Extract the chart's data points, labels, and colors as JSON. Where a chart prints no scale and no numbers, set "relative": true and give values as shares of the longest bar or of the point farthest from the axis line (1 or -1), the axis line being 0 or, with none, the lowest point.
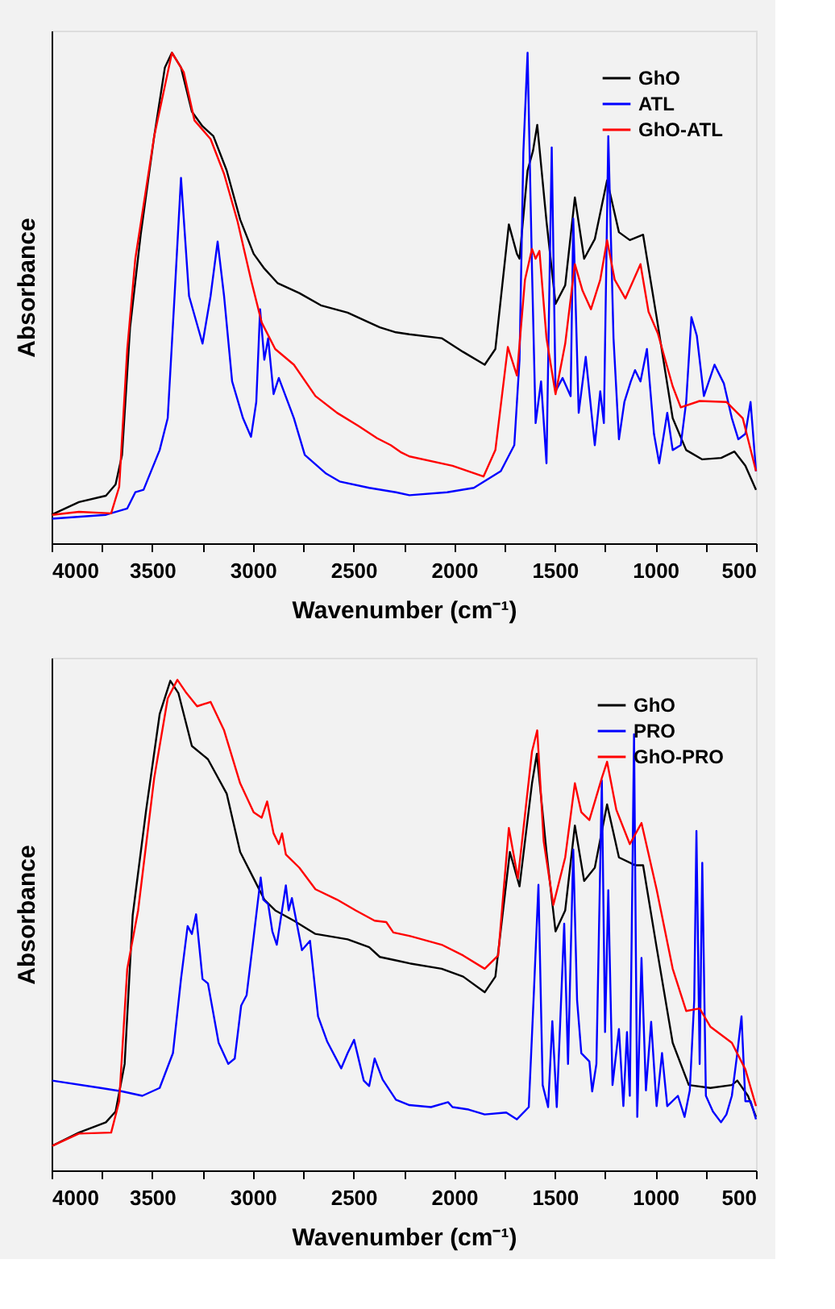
{
  "chart_data": [
    {
      "type": "line",
      "relative": true,
      "xlabel": "Wavenumber (cm⁻¹)",
      "ylabel": "Absorbance",
      "xlim": [
        4000,
        500
      ],
      "xticks": [
        4000,
        {
          "value": 3750,
          "label": null
        },
        3500,
        {
          "value": 3250,
          "label": null
        },
        3000,
        {
          "value": 2750,
          "label": null
        },
        2500,
        {
          "value": 2250,
          "label": null
        },
        2000,
        {
          "value": 1750,
          "label": null
        },
        1500,
        {
          "value": 1250,
          "label": null
        },
        1000,
        {
          "value": 750,
          "label": null
        },
        500
      ],
      "legend": "top right",
      "line_style": "solid",
      "marker": "none",
      "series": [
        {
          "name": "GhO",
          "color": "#000000",
          "x": [
            4000,
            3864,
            3730,
            3682,
            3650,
            3610,
            3557,
            3490,
            3437,
            3402,
            3357,
            3303,
            3250,
            3196,
            3130,
            3063,
            2996,
            2943,
            2876,
            2769,
            2662,
            2529,
            2422,
            2369,
            2289,
            2222,
            2062,
            1955,
            1848,
            1795,
            1728,
            1688,
            1675,
            1635,
            1608,
            1587,
            1541,
            1496,
            1448,
            1400,
            1354,
            1301,
            1240,
            1181,
            1127,
            1061,
            994,
            914,
            847,
            767,
            673,
            607,
            553,
            500
          ],
          "values": [
            0.058,
            0.084,
            0.097,
            0.12,
            0.18,
            0.44,
            0.63,
            0.83,
            0.97,
            1.0,
            0.97,
            0.88,
            0.85,
            0.83,
            0.76,
            0.66,
            0.59,
            0.56,
            0.53,
            0.51,
            0.485,
            0.47,
            0.45,
            0.44,
            0.43,
            0.426,
            0.418,
            0.39,
            0.364,
            0.396,
            0.65,
            0.59,
            0.58,
            0.76,
            0.8,
            0.853,
            0.656,
            0.488,
            0.526,
            0.705,
            0.58,
            0.62,
            0.74,
            0.634,
            0.618,
            0.629,
            0.461,
            0.255,
            0.19,
            0.171,
            0.174,
            0.187,
            0.158,
            0.109
          ]
        },
        {
          "name": "ATL",
          "color": "#0000ff",
          "x": [
            3997,
            3730,
            3624,
            3584,
            3543,
            3463,
            3423,
            3389,
            3357,
            3317,
            3250,
            3210,
            3175,
            3143,
            3103,
            3049,
            3009,
            2983,
            2964,
            2943,
            2924,
            2897,
            2871,
            2796,
            2742,
            2636,
            2569,
            2422,
            2289,
            2222,
            2035,
            1902,
            1768,
            1701,
            1675,
            1656,
            1635,
            1613,
            1595,
            1568,
            1541,
            1515,
            1496,
            1461,
            1421,
            1408,
            1381,
            1346,
            1301,
            1274,
            1256,
            1234,
            1208,
            1181,
            1154,
            1122,
            1101,
            1074,
            1042,
            1007,
            981,
            941,
            914,
            874,
            847,
            821,
            794,
            759,
            706,
            660,
            620,
            588,
            553,
            527,
            500
          ],
          "values": [
            0.05,
            0.058,
            0.071,
            0.104,
            0.109,
            0.19,
            0.255,
            0.504,
            0.745,
            0.504,
            0.407,
            0.504,
            0.615,
            0.504,
            0.33,
            0.255,
            0.217,
            0.288,
            0.477,
            0.374,
            0.418,
            0.304,
            0.337,
            0.255,
            0.18,
            0.142,
            0.126,
            0.113,
            0.104,
            0.098,
            0.104,
            0.113,
            0.147,
            0.2,
            0.374,
            0.797,
            1.0,
            0.558,
            0.245,
            0.33,
            0.163,
            0.807,
            0.31,
            0.337,
            0.3,
            0.662,
            0.266,
            0.38,
            0.2,
            0.31,
            0.245,
            0.83,
            0.418,
            0.212,
            0.288,
            0.33,
            0.353,
            0.33,
            0.396,
            0.223,
            0.163,
            0.266,
            0.19,
            0.2,
            0.288,
            0.461,
            0.423,
            0.3,
            0.364,
            0.326,
            0.255,
            0.212,
            0.223,
            0.288,
            0.147
          ]
        },
        {
          "name": "GhO-ATL",
          "color": "#ff0000",
          "x": [
            3997,
            3864,
            3704,
            3664,
            3624,
            3584,
            3490,
            3402,
            3343,
            3290,
            3210,
            3143,
            3076,
            3009,
            2956,
            2889,
            2796,
            2689,
            2582,
            2475,
            2382,
            2315,
            2262,
            2222,
            2008,
            1854,
            1795,
            1733,
            1688,
            1648,
            1613,
            1595,
            1576,
            1541,
            1496,
            1448,
            1400,
            1362,
            1320,
            1274,
            1240,
            1202,
            1149,
            1074,
            1034,
            988,
            914,
            874,
            780,
            647,
            566,
            500
          ],
          "values": [
            0.058,
            0.064,
            0.061,
            0.115,
            0.396,
            0.58,
            0.83,
            1.0,
            0.96,
            0.862,
            0.824,
            0.753,
            0.656,
            0.537,
            0.45,
            0.396,
            0.364,
            0.3,
            0.266,
            0.239,
            0.214,
            0.2,
            0.185,
            0.177,
            0.158,
            0.136,
            0.19,
            0.4,
            0.342,
            0.537,
            0.6,
            0.58,
            0.596,
            0.418,
            0.304,
            0.407,
            0.569,
            0.515,
            0.477,
            0.537,
            0.618,
            0.537,
            0.499,
            0.569,
            0.472,
            0.428,
            0.32,
            0.277,
            0.29,
            0.288,
            0.255,
            0.147
          ]
        }
      ]
    },
    {
      "type": "line",
      "relative": true,
      "xlabel": "Wavenumber (cm⁻¹)",
      "ylabel": "Absorbance",
      "xlim": [
        4000,
        500
      ],
      "xticks": [
        4000,
        {
          "value": 3750,
          "label": null
        },
        3500,
        {
          "value": 3250,
          "label": null
        },
        3000,
        {
          "value": 2750,
          "label": null
        },
        2500,
        {
          "value": 2250,
          "label": null
        },
        2000,
        {
          "value": 1750,
          "label": null
        },
        1500,
        {
          "value": 1250,
          "label": null
        },
        1000,
        {
          "value": 750,
          "label": null
        },
        500
      ],
      "legend": "top right",
      "line_style": "solid",
      "marker": "none",
      "series": [
        {
          "name": "GhO",
          "color": "#000000",
          "x": [
            3997,
            3864,
            3730,
            3682,
            3637,
            3597,
            3530,
            3463,
            3410,
            3370,
            3303,
            3223,
            3130,
            3063,
            2996,
            2943,
            2889,
            2796,
            2689,
            2529,
            2422,
            2369,
            2289,
            2222,
            2062,
            1955,
            1848,
            1795,
            1723,
            1675,
            1613,
            1589,
            1541,
            1496,
            1448,
            1400,
            1354,
            1301,
            1240,
            1181,
            1101,
            1061,
            994,
            914,
            834,
            727,
            620,
            593,
            540,
            500
          ],
          "values": [
            0.05,
            0.077,
            0.098,
            0.12,
            0.217,
            0.52,
            0.735,
            0.93,
            0.998,
            0.973,
            0.865,
            0.838,
            0.768,
            0.649,
            0.595,
            0.552,
            0.53,
            0.509,
            0.482,
            0.471,
            0.455,
            0.435,
            0.428,
            0.422,
            0.411,
            0.395,
            0.363,
            0.395,
            0.649,
            0.579,
            0.789,
            0.849,
            0.649,
            0.487,
            0.53,
            0.703,
            0.59,
            0.617,
            0.746,
            0.638,
            0.622,
            0.622,
            0.455,
            0.26,
            0.174,
            0.168,
            0.174,
            0.183,
            0.152,
            0.109
          ]
        },
        {
          "name": "PRO",
          "color": "#0000ff",
          "x": [
            3997,
            3757,
            3650,
            3549,
            3463,
            3397,
            3357,
            3324,
            3303,
            3282,
            3250,
            3223,
            3170,
            3122,
            3090,
            3058,
            3031,
            2996,
            2961,
            2948,
            2924,
            2903,
            2881,
            2836,
            2822,
            2806,
            2756,
            2716,
            2676,
            2630,
            2561,
            2529,
            2497,
            2449,
            2422,
            2395,
            2355,
            2289,
            2222,
            2115,
            2030,
            2008,
            1928,
            1848,
            1741,
            1688,
            1629,
            1603,
            1581,
            1560,
            1533,
            1512,
            1490,
            1453,
            1434,
            1408,
            1389,
            1368,
            1328,
            1314,
            1293,
            1266,
            1250,
            1234,
            1213,
            1181,
            1159,
            1141,
            1127,
            1106,
            1090,
            1069,
            1047,
            1021,
            994,
            967,
            941,
            888,
            855,
            829,
            807,
            796,
            780,
            767,
            749,
            714,
            674,
            647,
            620,
            593,
            572,
            553,
            527,
            500
          ],
          "values": [
            0.183,
            0.168,
            0.161,
            0.152,
            0.168,
            0.239,
            0.39,
            0.498,
            0.482,
            0.522,
            0.39,
            0.381,
            0.26,
            0.217,
            0.228,
            0.336,
            0.357,
            0.476,
            0.597,
            0.552,
            0.543,
            0.487,
            0.46,
            0.581,
            0.53,
            0.555,
            0.449,
            0.468,
            0.314,
            0.262,
            0.208,
            0.239,
            0.266,
            0.183,
            0.172,
            0.228,
            0.185,
            0.144,
            0.133,
            0.129,
            0.139,
            0.129,
            0.124,
            0.114,
            0.118,
            0.104,
            0.129,
            0.369,
            0.582,
            0.174,
            0.129,
            0.304,
            0.129,
            0.503,
            0.217,
            0.654,
            0.347,
            0.239,
            0.222,
            0.161,
            0.217,
            0.795,
            0.282,
            0.571,
            0.174,
            0.288,
            0.131,
            0.282,
            0.152,
            0.889,
            0.109,
            0.433,
            0.163,
            0.303,
            0.131,
            0.239,
            0.131,
            0.152,
            0.109,
            0.163,
            0.347,
            0.692,
            0.217,
            0.627,
            0.152,
            0.12,
            0.098,
            0.114,
            0.152,
            0.239,
            0.314,
            0.141,
            0.141,
            0.104
          ]
        },
        {
          "name": "GhO-PRO",
          "color": "#ff0000",
          "x": [
            3997,
            3864,
            3704,
            3664,
            3624,
            3570,
            3490,
            3423,
            3375,
            3330,
            3277,
            3210,
            3143,
            3063,
            2996,
            2956,
            2929,
            2897,
            2871,
            2855,
            2836,
            2769,
            2689,
            2582,
            2489,
            2395,
            2337,
            2302,
            2222,
            2062,
            1955,
            1848,
            1781,
            1728,
            1683,
            1613,
            1587,
            1555,
            1507,
            1448,
            1400,
            1368,
            1328,
            1266,
            1240,
            1194,
            1127,
            1069,
            994,
            914,
            847,
            780,
            727,
            620,
            553,
            500
          ],
          "values": [
            0.05,
            0.075,
            0.077,
            0.141,
            0.411,
            0.53,
            0.8,
            0.962,
            1.0,
            0.973,
            0.946,
            0.955,
            0.897,
            0.789,
            0.73,
            0.719,
            0.752,
            0.687,
            0.665,
            0.687,
            0.644,
            0.617,
            0.573,
            0.552,
            0.53,
            0.509,
            0.506,
            0.485,
            0.478,
            0.46,
            0.438,
            0.411,
            0.438,
            0.698,
            0.595,
            0.854,
            0.897,
            0.671,
            0.541,
            0.638,
            0.789,
            0.73,
            0.714,
            0.8,
            0.833,
            0.735,
            0.665,
            0.708,
            0.573,
            0.411,
            0.325,
            0.33,
            0.293,
            0.26,
            0.206,
            0.131
          ]
        }
      ]
    }
  ]
}
